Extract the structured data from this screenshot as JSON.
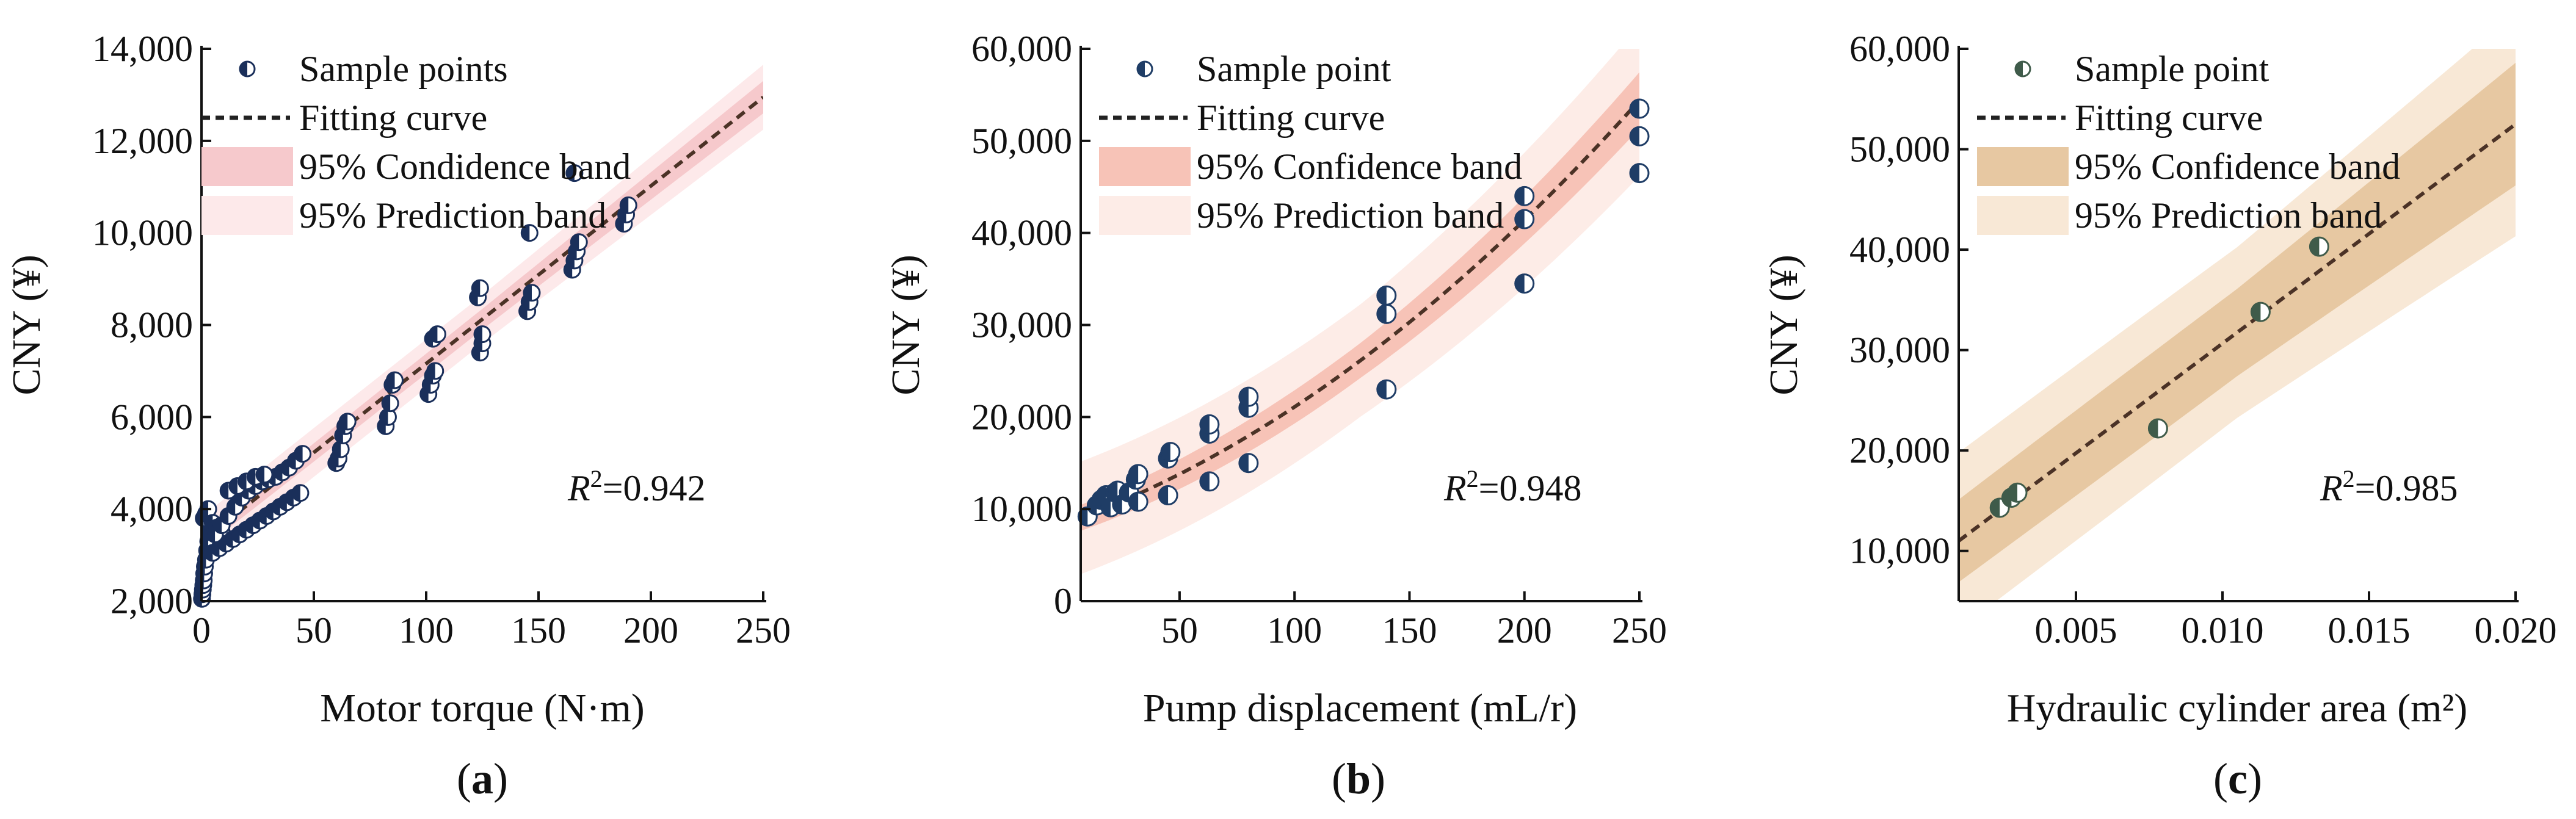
{
  "figure": {
    "colors": {
      "axis": "#111111",
      "marker_dark": "#1a2f5a",
      "marker_dark_b": "#1f3d66",
      "marker_c": "#3f5b4a",
      "curve": "#4b3226",
      "band_a_conf": "#f6c9cc",
      "band_a_pred": "#fde9ea",
      "band_b_conf": "#f7c3b7",
      "band_b_pred": "#fdece7",
      "band_c_conf": "#e7c8a2",
      "band_c_pred": "#f8e8d6"
    }
  },
  "chart_data": [
    {
      "id": "a",
      "type": "scatter",
      "panel_label": "a",
      "xlabel": "Motor torque (N·m)",
      "ylabel": "CNY (¥)",
      "xlim": [
        0,
        250
      ],
      "ylim": [
        2000,
        14000
      ],
      "xticks": [
        0,
        50,
        100,
        150,
        200,
        250
      ],
      "yticks": [
        2000,
        4000,
        6000,
        8000,
        10000,
        12000,
        14000
      ],
      "ytick_labels": [
        "2,000",
        "4,000",
        "6,000",
        "8,000",
        "10,000",
        "12,000",
        "14,000"
      ],
      "r2_label": "=0.942",
      "legend": {
        "sample": "Sample points",
        "fit": "Fitting curve",
        "confidence": "95% Condidence band",
        "prediction": "95% Prediction band"
      },
      "fit": {
        "x0": 0,
        "y0": 3300,
        "x1": 250,
        "y1": 12950
      },
      "conf_halfwidth": [
        150,
        300
      ],
      "pred_halfwidth": [
        450,
        600
      ],
      "points": [
        [
          0.2,
          2050
        ],
        [
          0.4,
          2150
        ],
        [
          0.6,
          2250
        ],
        [
          0.8,
          2350
        ],
        [
          1,
          2450
        ],
        [
          1.2,
          2600
        ],
        [
          1.5,
          2750
        ],
        [
          2,
          2900
        ],
        [
          2.5,
          3100
        ],
        [
          3,
          3300
        ],
        [
          3.5,
          3500
        ],
        [
          4,
          3700
        ],
        [
          1,
          3800
        ],
        [
          2,
          3900
        ],
        [
          3,
          4000
        ],
        [
          5,
          3700
        ],
        [
          7,
          3600
        ],
        [
          9,
          3500
        ],
        [
          5,
          3050
        ],
        [
          8,
          3150
        ],
        [
          11,
          3250
        ],
        [
          14,
          3350
        ],
        [
          17,
          3450
        ],
        [
          20,
          3550
        ],
        [
          23,
          3650
        ],
        [
          26,
          3750
        ],
        [
          29,
          3850
        ],
        [
          32,
          3950
        ],
        [
          35,
          4050
        ],
        [
          38,
          4150
        ],
        [
          41,
          4250
        ],
        [
          44,
          4350
        ],
        [
          6,
          3450
        ],
        [
          9,
          3650
        ],
        [
          12,
          3850
        ],
        [
          15,
          4050
        ],
        [
          18,
          4250
        ],
        [
          21,
          4400
        ],
        [
          24,
          4500
        ],
        [
          27,
          4600
        ],
        [
          30,
          4650
        ],
        [
          33,
          4700
        ],
        [
          36,
          4800
        ],
        [
          39,
          4900
        ],
        [
          42,
          5050
        ],
        [
          45,
          5200
        ],
        [
          12,
          4400
        ],
        [
          16,
          4500
        ],
        [
          20,
          4600
        ],
        [
          24,
          4700
        ],
        [
          28,
          4750
        ],
        [
          60,
          5000
        ],
        [
          61,
          5100
        ],
        [
          62,
          5300
        ],
        [
          63,
          5600
        ],
        [
          64,
          5800
        ],
        [
          65,
          5900
        ],
        [
          82,
          5800
        ],
        [
          83,
          6000
        ],
        [
          84,
          6300
        ],
        [
          85,
          6700
        ],
        [
          86,
          6800
        ],
        [
          101,
          6500
        ],
        [
          102,
          6700
        ],
        [
          103,
          6900
        ],
        [
          104,
          7000
        ],
        [
          103,
          7700
        ],
        [
          105,
          7800
        ],
        [
          124,
          7400
        ],
        [
          125,
          7600
        ],
        [
          125,
          7800
        ],
        [
          123,
          8600
        ],
        [
          124,
          8800
        ],
        [
          145,
          8300
        ],
        [
          146,
          8500
        ],
        [
          147,
          8700
        ],
        [
          146,
          10000
        ],
        [
          165,
          9200
        ],
        [
          166,
          9400
        ],
        [
          167,
          9600
        ],
        [
          168,
          9800
        ],
        [
          166,
          11300
        ],
        [
          188,
          10200
        ],
        [
          189,
          10400
        ],
        [
          190,
          10600
        ]
      ]
    },
    {
      "id": "b",
      "type": "scatter",
      "panel_label": "b",
      "xlabel": "Pump displacement (mL/r)",
      "ylabel": "CNY (¥)",
      "xlim": [
        7,
        250
      ],
      "ylim": [
        0,
        60000
      ],
      "xticks": [
        50,
        100,
        150,
        200,
        250
      ],
      "yticks": [
        0,
        10000,
        20000,
        30000,
        40000,
        50000,
        60000
      ],
      "ytick_labels": [
        "0",
        "10,000",
        "20,000",
        "30,000",
        "40,000",
        "50,000",
        "60,000"
      ],
      "r2_label": "=0.948",
      "legend": {
        "sample": "Sample point",
        "fit": "Fitting curve",
        "confidence": "95% Confidence band",
        "prediction": "95% Prediction band"
      },
      "fit": {
        "a": 8400,
        "b": 89,
        "c": 0.322
      },
      "conf_halfwidth": [
        1200,
        2600
      ],
      "pred_halfwidth": [
        5200,
        7000
      ],
      "points": [
        [
          10,
          9200
        ],
        [
          14,
          10400
        ],
        [
          16,
          11000
        ],
        [
          18,
          11500
        ],
        [
          20,
          10200
        ],
        [
          22,
          11800
        ],
        [
          23,
          12000
        ],
        [
          25,
          10500
        ],
        [
          28,
          11800
        ],
        [
          31,
          13200
        ],
        [
          32,
          13800
        ],
        [
          32,
          10800
        ],
        [
          45,
          11500
        ],
        [
          45,
          15500
        ],
        [
          46,
          16200
        ],
        [
          63,
          13000
        ],
        [
          63,
          18200
        ],
        [
          63,
          19200
        ],
        [
          80,
          15000
        ],
        [
          80,
          21000
        ],
        [
          80,
          22200
        ],
        [
          140,
          23000
        ],
        [
          140,
          31200
        ],
        [
          140,
          33200
        ],
        [
          200,
          34500
        ],
        [
          200,
          41500
        ],
        [
          200,
          44000
        ],
        [
          250,
          46500
        ],
        [
          250,
          50500
        ],
        [
          250,
          53500
        ]
      ]
    },
    {
      "id": "c",
      "type": "scatter",
      "panel_label": "c",
      "xlabel": "Hydraulic cylinder area (m²)",
      "ylabel": "CNY (¥)",
      "xlim": [
        0.001,
        0.02
      ],
      "ylim": [
        5000,
        60000
      ],
      "xticks": [
        0.005,
        0.01,
        0.015,
        0.02
      ],
      "xtick_labels": [
        "0.005",
        "0.010",
        "0.015",
        "0.020"
      ],
      "yticks": [
        10000,
        20000,
        30000,
        40000,
        50000,
        60000
      ],
      "ytick_labels": [
        "10,000",
        "20,000",
        "30,000",
        "40,000",
        "50,000",
        "60,000"
      ],
      "r2_label": "=0.985",
      "legend": {
        "sample": "Sample point",
        "fit": "Fitting curve",
        "confidence": "95% Confidence band",
        "prediction": "95% Prediction band"
      },
      "fit": {
        "x0": 0.001,
        "y0": 11000,
        "x1": 0.02,
        "y1": 52500
      },
      "conf_halfwidth": [
        3500,
        5200
      ],
      "pred_halfwidth": [
        7500,
        9500
      ],
      "points": [
        [
          0.0024,
          14300
        ],
        [
          0.0028,
          15300
        ],
        [
          0.003,
          15800
        ],
        [
          0.0078,
          22200
        ],
        [
          0.0113,
          33800
        ],
        [
          0.0133,
          40300
        ]
      ]
    }
  ]
}
